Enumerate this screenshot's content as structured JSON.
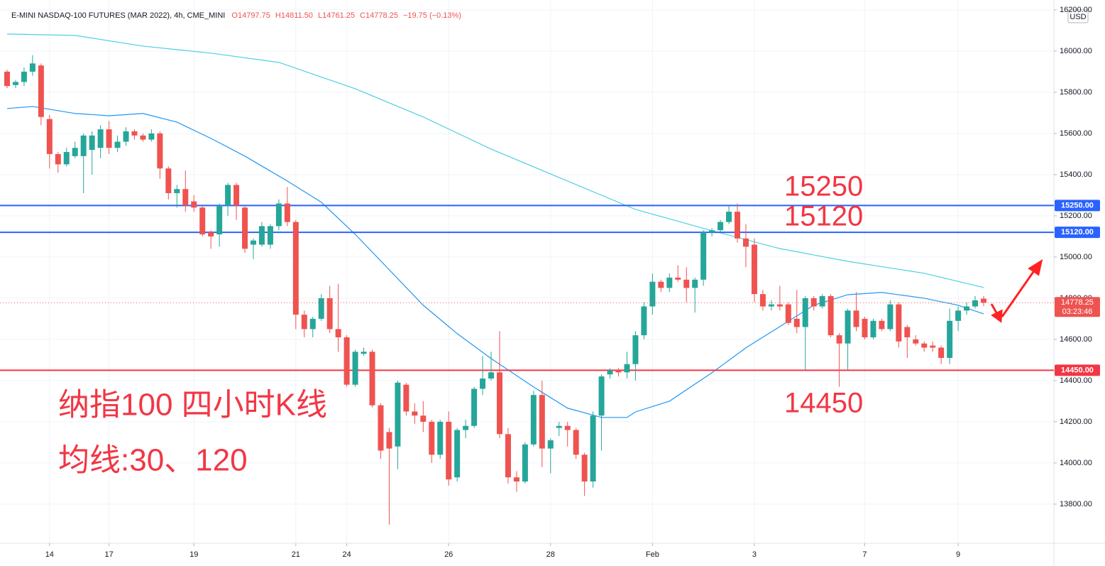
{
  "header": {
    "title": "E-MINI NASDAQ-100 FUTURES (MAR 2022), 4h, CME_MINI",
    "values": [
      "O14797.75",
      "H14811.50",
      "L14761.25",
      "C14778.25",
      "−19.75 (−0.13%)"
    ],
    "currency": "USD",
    "current_price": "14778.25",
    "countdown": "03:23:46"
  },
  "chart_data": {
    "type": "candlestick",
    "up_color": "#26a69a",
    "down_color": "#ef5350",
    "ylim": [
      13610,
      16248
    ],
    "yticks": [
      {
        "value": 13800,
        "label": "13800.00"
      },
      {
        "value": 14000,
        "label": "14000.00"
      },
      {
        "value": 14200,
        "label": "14200.00"
      },
      {
        "value": 14400,
        "label": "14400.00"
      },
      {
        "value": 14600,
        "label": "14600.00"
      },
      {
        "value": 14800,
        "label": "14800.00"
      },
      {
        "value": 15000,
        "label": "15000.00"
      },
      {
        "value": 15200,
        "label": "15200.00"
      },
      {
        "value": 15400,
        "label": "15400.00"
      },
      {
        "value": 15600,
        "label": "15600.00"
      },
      {
        "value": 15800,
        "label": "15800.00"
      },
      {
        "value": 16000,
        "label": "16000.00"
      },
      {
        "value": 16200,
        "label": "16200.00"
      }
    ],
    "xlim": [
      0,
      115
    ],
    "xticks": [
      {
        "value": 5,
        "label": "14"
      },
      {
        "value": 12,
        "label": "17"
      },
      {
        "value": 22,
        "label": "19"
      },
      {
        "value": 34,
        "label": "21"
      },
      {
        "value": 40,
        "label": "24"
      },
      {
        "value": 52,
        "label": "26"
      },
      {
        "value": 64,
        "label": "28"
      },
      {
        "value": 76,
        "label": "Feb"
      },
      {
        "value": 88,
        "label": "3"
      },
      {
        "value": 101,
        "label": "7"
      },
      {
        "value": 112,
        "label": "9"
      }
    ],
    "grid": true,
    "open": [
      15900,
      15835,
      15850,
      15900,
      15930,
      15670,
      15500,
      15450,
      15490,
      15490,
      15520,
      15530,
      15620,
      15530,
      15560,
      15610,
      15590,
      15570,
      15600,
      15430,
      15310,
      15330,
      15270,
      15240,
      15120,
      15110,
      15250,
      15350,
      15240,
      15060,
      15060,
      15060,
      15150,
      15260,
      15170,
      14720,
      14650,
      14700,
      14800,
      14650,
      14610,
      14380,
      14530,
      14540,
      14280,
      14150,
      14080,
      14380,
      14250,
      14230,
      14200,
      14040,
      14200,
      13930,
      14160,
      14180,
      14360,
      14410,
      14440,
      14140,
      13930,
      13910,
      14090,
      14330,
      14070,
      14170,
      14180,
      14160,
      14040,
      13910,
      14230,
      14430,
      14450,
      14440,
      14480,
      14620,
      14760,
      14880,
      14850,
      14900,
      14890,
      14850,
      14890,
      15120,
      15130,
      15170,
      15220,
      15090,
      15060,
      14820,
      14760,
      14770,
      14770,
      14700,
      14660,
      14800,
      14760,
      14810,
      14620,
      14580,
      14740,
      14700,
      14610,
      14690,
      14650,
      14770,
      14660,
      14600,
      14580,
      14570,
      14560,
      14510,
      14690,
      14740,
      14760,
      14797.75
    ],
    "high": [
      15910,
      15860,
      15920,
      15980,
      15940,
      15690,
      15510,
      15530,
      15560,
      15600,
      15610,
      15640,
      15660,
      15590,
      15630,
      15620,
      15600,
      15620,
      15610,
      15440,
      15350,
      15420,
      15300,
      15250,
      15130,
      15260,
      15360,
      15360,
      15250,
      15090,
      15170,
      15160,
      15280,
      15340,
      15180,
      14740,
      14710,
      14820,
      14860,
      14870,
      14620,
      14550,
      14560,
      14550,
      14290,
      14170,
      14400,
      14390,
      14290,
      14300,
      14210,
      14210,
      14250,
      14170,
      14210,
      14370,
      14520,
      14540,
      14640,
      14170,
      13960,
      14100,
      14350,
      14400,
      14120,
      14200,
      14200,
      14170,
      14050,
      14250,
      14430,
      14460,
      14460,
      14540,
      14640,
      14780,
      14920,
      14890,
      14920,
      14960,
      14950,
      14900,
      15130,
      15140,
      15180,
      15250,
      15260,
      15160,
      15090,
      14840,
      14790,
      14860,
      14780,
      14840,
      14810,
      14810,
      14820,
      14820,
      14630,
      14750,
      14830,
      14710,
      14700,
      14700,
      14790,
      14780,
      14670,
      14620,
      14590,
      14590,
      14570,
      14750,
      14760,
      14780,
      14810,
      14811.5
    ],
    "low": [
      15820,
      15820,
      15830,
      15880,
      15640,
      15430,
      15410,
      15440,
      15480,
      15310,
      15400,
      15480,
      15500,
      15510,
      15540,
      15570,
      15560,
      15560,
      15380,
      15280,
      15240,
      15220,
      15220,
      15100,
      15040,
      15050,
      15200,
      15180,
      15020,
      14990,
      15050,
      15040,
      15130,
      15150,
      14650,
      14610,
      14610,
      14690,
      14630,
      14540,
      14370,
      14370,
      14520,
      14270,
      14020,
      13700,
      13970,
      14230,
      14190,
      14150,
      14000,
      14020,
      13890,
      13910,
      14120,
      14170,
      14330,
      14400,
      14120,
      13900,
      13860,
      13900,
      14080,
      13980,
      13950,
      14130,
      14080,
      14020,
      13840,
      13880,
      14060,
      14410,
      14420,
      14410,
      14400,
      14600,
      14720,
      14830,
      14830,
      14880,
      14780,
      14730,
      14860,
      15100,
      15120,
      15160,
      15070,
      14950,
      14780,
      14740,
      14740,
      14740,
      14670,
      14630,
      14450,
      14740,
      14750,
      14610,
      14370,
      14450,
      14640,
      14600,
      14600,
      14640,
      14640,
      14560,
      14510,
      14570,
      14540,
      14540,
      14480,
      14480,
      14640,
      14720,
      14750,
      14761.25
    ],
    "close": [
      15830,
      15850,
      15900,
      15940,
      15680,
      15500,
      15450,
      15510,
      15530,
      15590,
      15590,
      15620,
      15530,
      15560,
      15610,
      15590,
      15570,
      15600,
      15430,
      15310,
      15330,
      15250,
      15240,
      15110,
      15100,
      15250,
      15350,
      15250,
      15040,
      15080,
      15150,
      15150,
      15260,
      15170,
      14720,
      14650,
      14700,
      14800,
      14650,
      14610,
      14380,
      14540,
      14540,
      14280,
      14060,
      14070,
      14390,
      14250,
      14230,
      14200,
      14040,
      14200,
      13920,
      14160,
      14180,
      14360,
      14410,
      14440,
      14140,
      13930,
      13910,
      14090,
      14330,
      14070,
      14110,
      14180,
      14160,
      14040,
      13910,
      14230,
      14420,
      14450,
      14440,
      14480,
      14620,
      14760,
      14880,
      14850,
      14900,
      14890,
      14850,
      14890,
      15120,
      15130,
      15170,
      15220,
      15090,
      15050,
      14820,
      14760,
      14770,
      14760,
      14680,
      14660,
      14800,
      14760,
      14810,
      14620,
      14580,
      14740,
      14660,
      14610,
      14690,
      14650,
      14770,
      14590,
      14610,
      14580,
      14560,
      14560,
      14510,
      14690,
      14740,
      14760,
      14790,
      14778.25
    ],
    "ma120": {
      "color": "#4dd0e1",
      "x": [
        0,
        8,
        16,
        24,
        32,
        41,
        49,
        57,
        66,
        74,
        83,
        91,
        99,
        108,
        115
      ],
      "values": [
        16083,
        16076,
        16024,
        15990,
        15945,
        15817,
        15680,
        15524,
        15369,
        15231,
        15128,
        15041,
        14979,
        14921,
        14852
      ]
    },
    "ma30": {
      "color": "#2196f3",
      "x": [
        0,
        3,
        8,
        12,
        16,
        20,
        24,
        28,
        33,
        37,
        41,
        45,
        49,
        53,
        57,
        62,
        66,
        70,
        73,
        74,
        78,
        83,
        87,
        91,
        95,
        99,
        103,
        108,
        112,
        115
      ],
      "values": [
        15721,
        15731,
        15697,
        15686,
        15697,
        15655,
        15576,
        15490,
        15369,
        15266,
        15110,
        14938,
        14766,
        14628,
        14507,
        14369,
        14266,
        14221,
        14221,
        14248,
        14300,
        14438,
        14559,
        14662,
        14766,
        14817,
        14828,
        14800,
        14766,
        14724
      ]
    },
    "levels": [
      {
        "value": 15250,
        "label": "15250.00",
        "color": "#2962ff"
      },
      {
        "value": 15120,
        "label": "15120.00",
        "color": "#2962ff"
      },
      {
        "value": 14450,
        "label": "14450.00",
        "color": "#f23645"
      }
    ],
    "annotations": [
      "15250",
      "15120",
      "14450",
      "纳指100 四小时K线",
      "均线:30、120"
    ]
  }
}
